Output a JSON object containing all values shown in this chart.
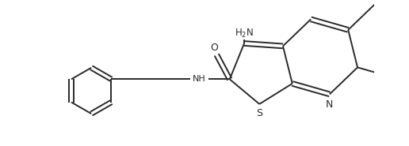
{
  "bg_color": "#ffffff",
  "line_color": "#2a2a2a",
  "line_width": 1.4,
  "figsize": [
    5.16,
    1.85
  ],
  "dpi": 100,
  "xlim": [
    -0.5,
    5.8
  ],
  "ylim": [
    -1.2,
    1.5
  ]
}
